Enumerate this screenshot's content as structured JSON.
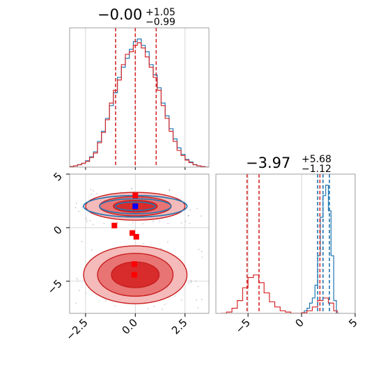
{
  "chart_data": [
    {
      "type": "histogram",
      "panel": "top-left",
      "title": {
        "value": "−0.00",
        "upper": "+1.05",
        "lower": "−0.99"
      },
      "xlim": [
        -3.3,
        3.7
      ],
      "quantile_lines_x": [
        -0.99,
        0.0,
        1.05
      ],
      "grid": true,
      "series": [
        {
          "color": "#1f77b4",
          "x": [
            -3.3,
            -3.1,
            -2.9,
            -2.7,
            -2.5,
            -2.3,
            -2.1,
            -1.9,
            -1.7,
            -1.5,
            -1.3,
            -1.1,
            -0.9,
            -0.7,
            -0.5,
            -0.3,
            -0.1,
            0.1,
            0.3,
            0.5,
            0.7,
            0.9,
            1.1,
            1.3,
            1.5,
            1.7,
            1.9,
            2.1,
            2.3,
            2.5,
            2.7,
            2.9,
            3.1,
            3.3,
            3.5,
            3.7
          ],
          "values": [
            0.005,
            0.01,
            0.02,
            0.03,
            0.05,
            0.08,
            0.12,
            0.2,
            0.28,
            0.38,
            0.48,
            0.58,
            0.7,
            0.78,
            0.85,
            0.92,
            0.98,
            1.0,
            0.95,
            0.9,
            0.8,
            0.72,
            0.62,
            0.5,
            0.4,
            0.3,
            0.22,
            0.15,
            0.1,
            0.06,
            0.04,
            0.02,
            0.01,
            0.005,
            0.0
          ]
        },
        {
          "color": "#d62728",
          "x": [
            -3.3,
            -3.1,
            -2.9,
            -2.7,
            -2.5,
            -2.3,
            -2.1,
            -1.9,
            -1.7,
            -1.5,
            -1.3,
            -1.1,
            -0.9,
            -0.7,
            -0.5,
            -0.3,
            -0.1,
            0.1,
            0.3,
            0.5,
            0.7,
            0.9,
            1.1,
            1.3,
            1.5,
            1.7,
            1.9,
            2.1,
            2.3,
            2.5,
            2.7,
            2.9,
            3.1,
            3.3,
            3.5,
            3.7
          ],
          "values": [
            0.004,
            0.01,
            0.018,
            0.03,
            0.045,
            0.075,
            0.11,
            0.19,
            0.27,
            0.37,
            0.5,
            0.6,
            0.68,
            0.8,
            0.88,
            0.9,
            0.95,
            0.97,
            0.93,
            0.86,
            0.78,
            0.7,
            0.6,
            0.48,
            0.38,
            0.28,
            0.2,
            0.13,
            0.09,
            0.055,
            0.035,
            0.018,
            0.01,
            0.004,
            0.0
          ]
        }
      ]
    },
    {
      "type": "histogram",
      "panel": "bottom-right",
      "title": {
        "value": "−3.97",
        "upper": "+5.68",
        "lower": "−1.12"
      },
      "xlim": [
        -8,
        5
      ],
      "xticks": [
        -5,
        0,
        5
      ],
      "xtick_labels": [
        "−5",
        "0",
        "5"
      ],
      "quantile_lines_red_x": [
        -5.09,
        -3.97,
        1.71
      ],
      "quantile_lines_blue_x": [
        1.5,
        2.0,
        2.6
      ],
      "grid": true,
      "series": [
        {
          "color": "#1f77b4",
          "x": [
            0.0,
            0.25,
            0.5,
            0.75,
            1.0,
            1.25,
            1.5,
            1.75,
            2.0,
            2.25,
            2.5,
            2.75,
            3.0,
            3.25
          ],
          "values": [
            0.0,
            0.02,
            0.04,
            0.08,
            0.12,
            0.22,
            0.45,
            0.75,
            0.92,
            1.0,
            0.8,
            0.45,
            0.1,
            0.0
          ]
        },
        {
          "color": "#d62728",
          "x": [
            -7.5,
            -7.0,
            -6.5,
            -6.0,
            -5.5,
            -5.0,
            -4.5,
            -4.0,
            -3.5,
            -3.0,
            -2.5,
            -2.0,
            -1.5,
            -1.0,
            -0.5,
            0.0,
            0.5,
            1.0,
            1.5,
            2.0,
            2.5,
            3.0
          ],
          "values": [
            0.0,
            0.01,
            0.04,
            0.1,
            0.2,
            0.28,
            0.3,
            0.24,
            0.16,
            0.09,
            0.05,
            0.02,
            0.01,
            0.0,
            0.0,
            0.005,
            0.02,
            0.05,
            0.1,
            0.12,
            0.08,
            0.02
          ]
        }
      ]
    },
    {
      "type": "contour",
      "panel": "bottom-left",
      "xlim": [
        -3.3,
        3.7
      ],
      "ylim": [
        -8,
        5
      ],
      "xticks": [
        -2.5,
        0.0,
        2.5
      ],
      "xtick_labels": [
        "−2.5",
        "0.0",
        "2.5"
      ],
      "yticks": [
        -5,
        0,
        5
      ],
      "ytick_labels": [
        "−5",
        "0",
        "5"
      ],
      "grid": true,
      "red_clusters": [
        {
          "center": [
            0.0,
            2.0
          ],
          "rx": [
            2.5,
            1.8,
            1.1
          ],
          "ry": [
            1.3,
            0.9,
            0.55
          ]
        },
        {
          "center": [
            0.0,
            -4.4
          ],
          "rx": [
            2.6,
            1.9,
            1.2
          ],
          "ry": [
            2.7,
            2.0,
            1.2
          ]
        }
      ],
      "blue_contours": {
        "center": [
          0.0,
          2.0
        ],
        "rx": [
          2.6,
          1.8,
          1.0
        ],
        "ry": [
          1.0,
          0.7,
          0.4
        ]
      },
      "red_markers": [
        [
          -1.05,
          0.2
        ],
        [
          0.0,
          3.0
        ],
        [
          0.0,
          1.9
        ],
        [
          -0.15,
          -0.5
        ],
        [
          0.05,
          -0.85
        ],
        [
          -0.05,
          -3.4
        ],
        [
          -0.05,
          -4.4
        ]
      ],
      "blue_marker": [
        0.0,
        2.0
      ]
    }
  ]
}
